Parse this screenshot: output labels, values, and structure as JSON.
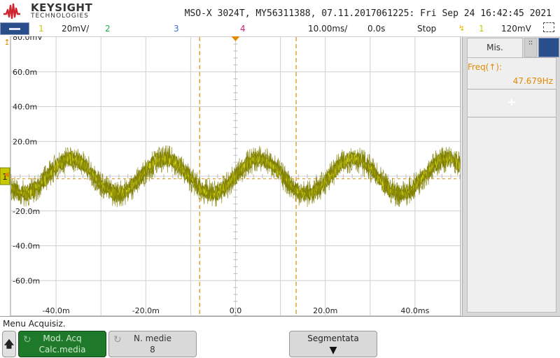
{
  "header": {
    "brand": "KEYSIGHT",
    "brand_sub": "TECHNOLOGIES",
    "device_info": "MSO-X 3024T, MY56311388, 07.11.2017061225: Fri Sep 24 16:42:45 2021"
  },
  "channel_bar": {
    "ch1_num": "1",
    "ch1_scale": "20mV/",
    "ch2_num": "2",
    "ch3_num": "3",
    "ch4_num": "4",
    "timebase": "10.00ms/",
    "delay": "0.0s",
    "run_state": "Stop",
    "trigger_channel": "1",
    "trigger_level": "120mV"
  },
  "colors": {
    "ch1": "#c8c800",
    "ch1_dark": "#7d7d00",
    "ch2": "#1bb24b",
    "ch3": "#3b6bd8",
    "ch4": "#cc2277",
    "cursor": "#e08a00",
    "grid": "#cfcfcf"
  },
  "y_axis": {
    "labels": [
      "80.0mV",
      "60.0m",
      "40.0m",
      "20.0m",
      "-20.0m",
      "-40.0m",
      "-60.0m"
    ],
    "range": [
      -80,
      80
    ],
    "unit": "mV"
  },
  "x_axis": {
    "labels": [
      "-40.0m",
      "-20.0m",
      "0.0",
      "20.0m",
      "40.0ms"
    ],
    "range": [
      -50,
      50
    ],
    "unit": "ms"
  },
  "cursors": {
    "x1_ms": -8,
    "x2_ms": 13.5
  },
  "chart_data": {
    "type": "line",
    "series": [
      {
        "frequency_hz": 47.679,
        "amplitude_mv": 10,
        "offset_mv": 0,
        "noise_mv": 5
      }
    ],
    "xlim": [
      -50,
      50
    ],
    "ylim": [
      -80,
      80
    ],
    "grid": true
  },
  "right_panel": {
    "tab_label": "Mis.",
    "meas_label": "Freq(↑):",
    "meas_value": "47.679Hz",
    "add_label": "+"
  },
  "softkeys": {
    "menu_title": "Menu Acquisiz.",
    "acq_mode_title": "Mod. Acq",
    "acq_mode_value": "Calc.media",
    "avg_title": "N. medie",
    "avg_value": "8",
    "segmented_title": "Segmentata"
  },
  "icons": {
    "up_arrow": "up-arrow-icon",
    "loop": "loop-icon",
    "down_triangle": "down-triangle-icon"
  }
}
